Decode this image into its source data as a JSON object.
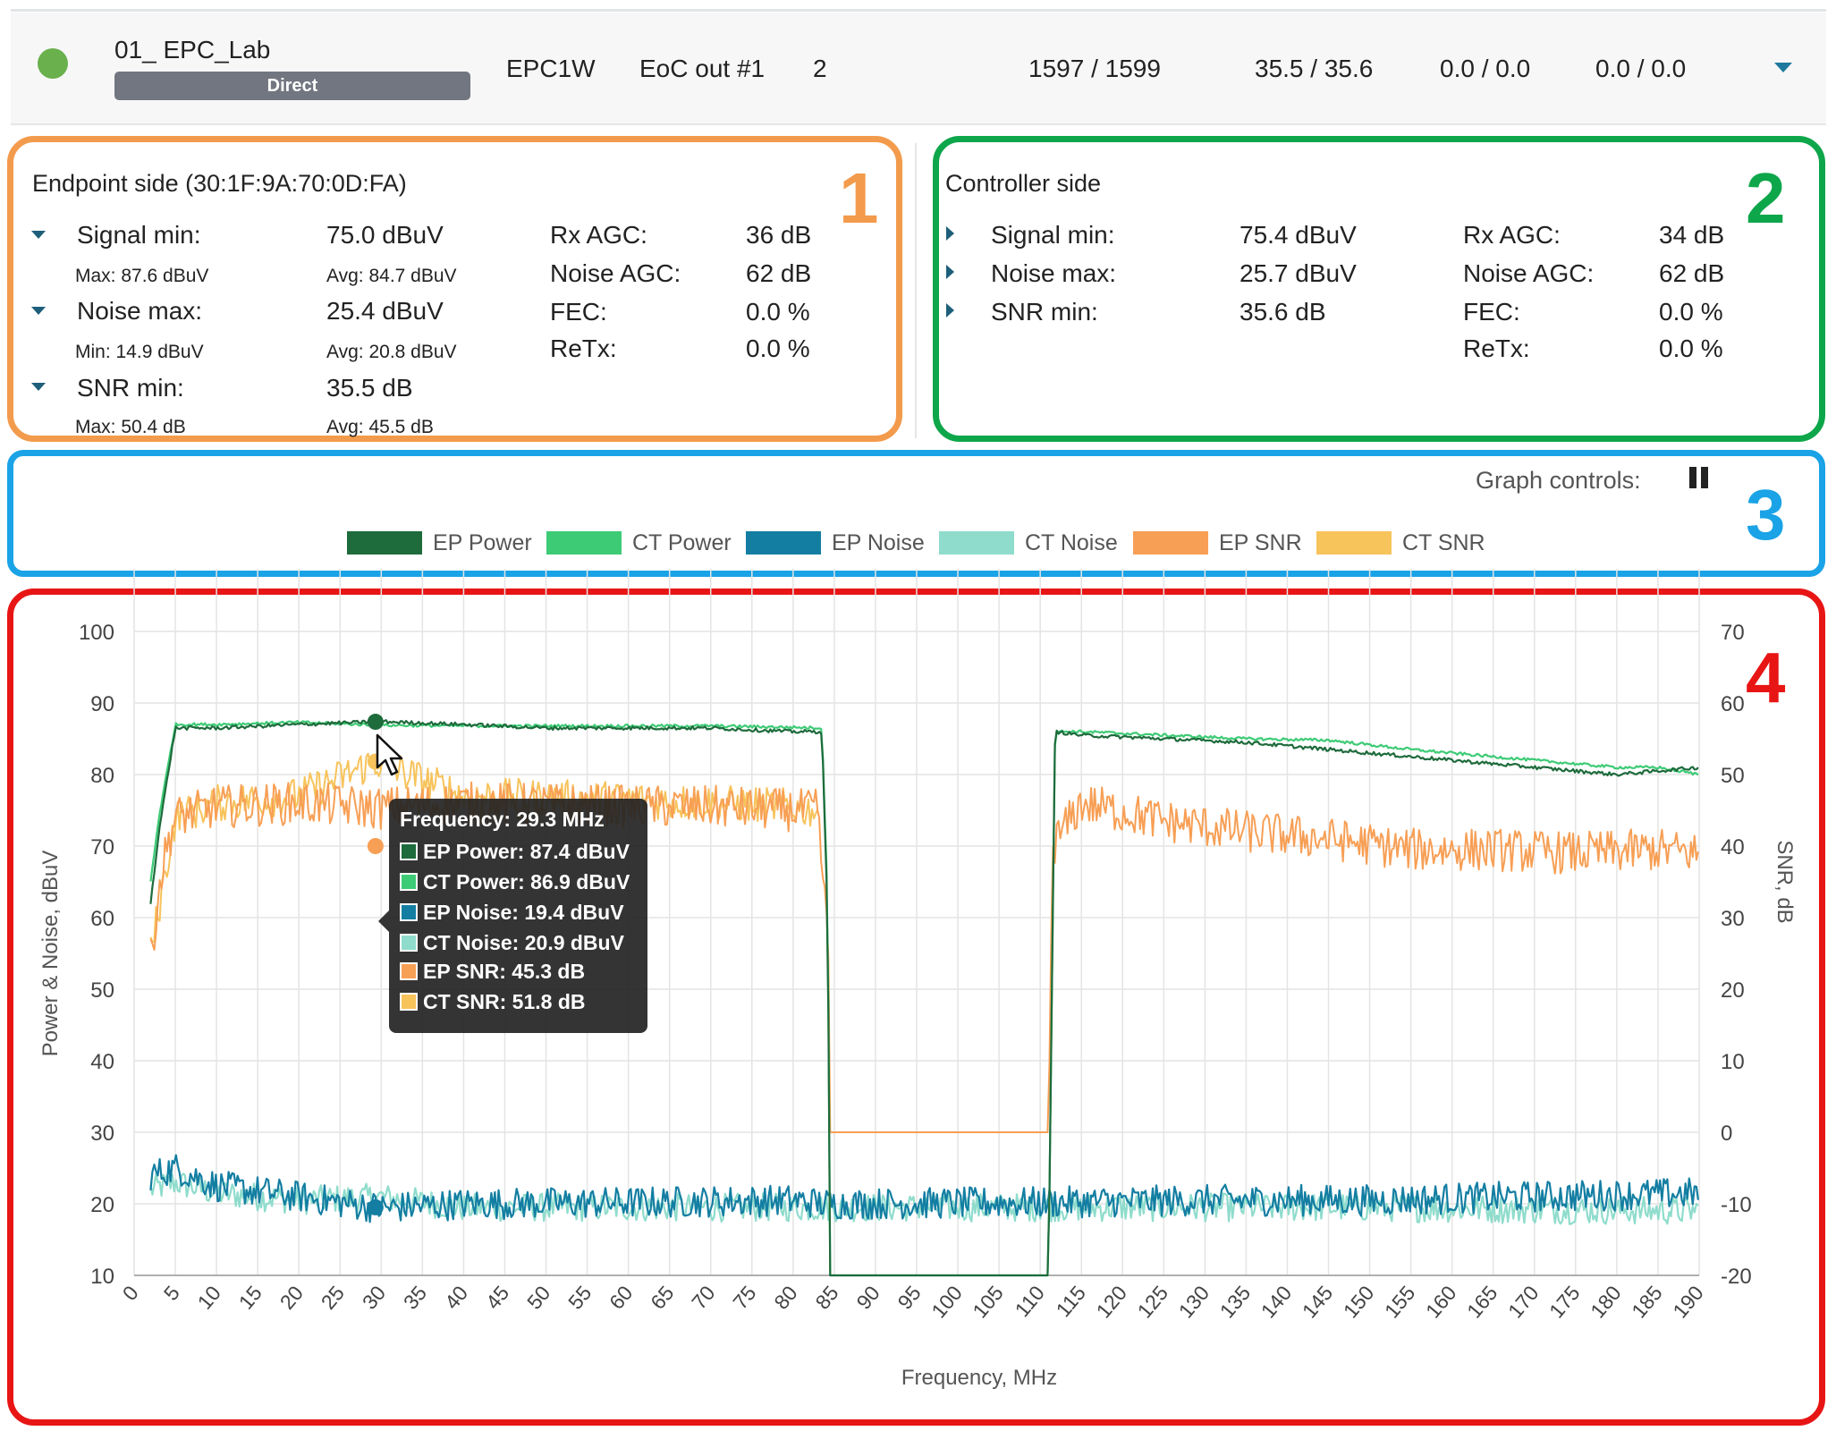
{
  "header": {
    "device_name": "01_ EPC_Lab",
    "badge": "Direct",
    "model": "EPC1W",
    "port": "EoC out #1",
    "count": "2",
    "rates": "1597  /  1599",
    "snr_pair": "35.5  /  35.6",
    "pair2": "0.0  /  0.0",
    "pair3": "0.0  /  0.0",
    "status_color": "#6ab04c"
  },
  "box_numbers": {
    "one": "1",
    "two": "2",
    "three": "3",
    "four": "4"
  },
  "endpoint": {
    "title": "Endpoint side (30:1F:9A:70:0D:FA)",
    "signal_min_label": "Signal min:",
    "signal_min_value": "75.0 dBuV",
    "signal_max": "Max: 87.6 dBuV",
    "signal_avg": "Avg: 84.7 dBuV",
    "noise_max_label": "Noise max:",
    "noise_max_value": "25.4 dBuV",
    "noise_min": "Min: 14.9 dBuV",
    "noise_avg": "Avg: 20.8 dBuV",
    "snr_min_label": "SNR min:",
    "snr_min_value": "35.5 dB",
    "snr_max": "Max: 50.4 dB",
    "snr_avg": "Avg: 45.5 dB",
    "rx_agc_label": "Rx AGC:",
    "rx_agc_value": "36 dB",
    "noise_agc_label": "Noise AGC:",
    "noise_agc_value": "62 dB",
    "fec_label": "FEC:",
    "fec_value": "0.0 %",
    "retx_label": "ReTx:",
    "retx_value": "0.0 %"
  },
  "controller": {
    "title": "Controller side",
    "signal_min_label": "Signal min:",
    "signal_min_value": "75.4 dBuV",
    "noise_max_label": "Noise max:",
    "noise_max_value": "25.7 dBuV",
    "snr_min_label": "SNR min:",
    "snr_min_value": "35.6 dB",
    "rx_agc_label": "Rx AGC:",
    "rx_agc_value": "34 dB",
    "noise_agc_label": "Noise AGC:",
    "noise_agc_value": "62 dB",
    "fec_label": "FEC:",
    "fec_value": "0.0 %",
    "retx_label": "ReTx:",
    "retx_value": "0.0 %"
  },
  "graph_controls": {
    "label": "Graph controls:",
    "pause_icon": "pause-icon"
  },
  "legend": [
    {
      "name": "EP Power",
      "color": "#1e6b3c"
    },
    {
      "name": "CT Power",
      "color": "#3ecb76"
    },
    {
      "name": "EP Noise",
      "color": "#137ea2"
    },
    {
      "name": "CT Noise",
      "color": "#8fdccc"
    },
    {
      "name": "EP SNR",
      "color": "#f79f55"
    },
    {
      "name": "CT SNR",
      "color": "#f7c35b"
    }
  ],
  "tooltip": {
    "title": "Frequency: 29.3 MHz",
    "rows": [
      "EP Power: 87.4 dBuV",
      "CT Power: 86.9 dBuV",
      "EP Noise: 19.4 dBuV",
      "CT Noise: 20.9 dBuV",
      "EP SNR: 45.3 dB",
      "CT SNR: 51.8 dB"
    ]
  },
  "chart_data": {
    "type": "line",
    "xlabel": "Frequency, MHz",
    "ylabel": "Power & Noise, dBuV",
    "y2label": "SNR, dB",
    "xlim": [
      0,
      190
    ],
    "ylim": [
      10,
      100
    ],
    "y2lim": [
      -20,
      70
    ],
    "xticks": [
      0,
      5,
      10,
      15,
      20,
      25,
      30,
      35,
      40,
      45,
      50,
      55,
      60,
      65,
      70,
      75,
      80,
      85,
      90,
      95,
      100,
      105,
      110,
      115,
      120,
      125,
      130,
      135,
      140,
      145,
      150,
      155,
      160,
      165,
      170,
      175,
      180,
      185,
      190
    ],
    "yticks": [
      10,
      20,
      30,
      40,
      50,
      60,
      70,
      80,
      90,
      100
    ],
    "y2ticks": [
      -20,
      -10,
      0,
      10,
      20,
      30,
      40,
      50,
      60,
      70
    ],
    "grid": true,
    "legend_position": "top",
    "series": [
      {
        "name": "EP Power",
        "axis": "left",
        "color": "#1e6b3c",
        "x": [
          2,
          3,
          5,
          10,
          20,
          30,
          40,
          50,
          60,
          70,
          80,
          83.5,
          84.2,
          84.5,
          111,
          111.8,
          115,
          125,
          135,
          145,
          155,
          165,
          175,
          180,
          185,
          190
        ],
        "y": [
          62,
          72,
          86.5,
          86.5,
          87,
          87.4,
          87,
          86.5,
          86.5,
          86.5,
          86,
          86,
          60,
          10,
          10,
          86,
          85.5,
          85,
          84.5,
          83.5,
          82.5,
          81.5,
          80.5,
          80,
          80.5,
          81
        ]
      },
      {
        "name": "CT Power",
        "axis": "left",
        "color": "#3ecb76",
        "x": [
          2,
          3,
          5,
          10,
          20,
          30,
          40,
          50,
          60,
          70,
          80,
          83.5,
          84.2,
          84.5,
          111,
          111.8,
          115,
          125,
          135,
          145,
          155,
          165,
          175,
          180,
          185,
          190
        ],
        "y": [
          65,
          74,
          87,
          87,
          87.3,
          86.9,
          86.8,
          86.8,
          86.8,
          86.8,
          86.6,
          86.5,
          62,
          10,
          10,
          86,
          86,
          85.5,
          85,
          84.8,
          83.5,
          82.5,
          81.5,
          81,
          81,
          80
        ]
      },
      {
        "name": "EP Noise",
        "axis": "left",
        "color": "#137ea2",
        "x": [
          2,
          5,
          10,
          20,
          30,
          40,
          60,
          80,
          84,
          110,
          130,
          150,
          170,
          190
        ],
        "y": [
          24,
          25,
          22.5,
          21,
          19.4,
          20,
          20.2,
          20.5,
          20,
          20.2,
          20.5,
          20.5,
          21,
          21.5
        ]
      },
      {
        "name": "CT Noise",
        "axis": "left",
        "color": "#8fdccc",
        "x": [
          2,
          5,
          10,
          20,
          30,
          40,
          60,
          80,
          84,
          110,
          130,
          150,
          170,
          190
        ],
        "y": [
          22,
          23,
          21.5,
          20.5,
          20.9,
          19.5,
          19.5,
          19.5,
          19.5,
          19.5,
          19.5,
          19.5,
          19.2,
          19
        ]
      },
      {
        "name": "EP SNR",
        "axis": "right",
        "color": "#f79f55",
        "x": [
          2,
          3,
          4,
          5,
          10,
          20,
          30,
          40,
          50,
          60,
          70,
          80,
          83,
          84.3,
          84.5,
          111,
          111.5,
          115,
          125,
          135,
          145,
          155,
          165,
          175,
          185,
          190
        ],
        "y": [
          24,
          34,
          40,
          44,
          45.5,
          46,
          45.3,
          46,
          45.8,
          45.5,
          45.5,
          45,
          45,
          25,
          0,
          0,
          40,
          46,
          43.5,
          42,
          41,
          39.5,
          39.5,
          39,
          39.5,
          39
        ]
      },
      {
        "name": "CT SNR",
        "axis": "right",
        "color": "#f7c35b",
        "x": [
          2,
          5,
          10,
          20,
          29.3,
          40,
          60,
          80,
          83
        ],
        "y": [
          25,
          44,
          46,
          47,
          51.8,
          47,
          46.5,
          45.5,
          45
        ]
      }
    ]
  }
}
